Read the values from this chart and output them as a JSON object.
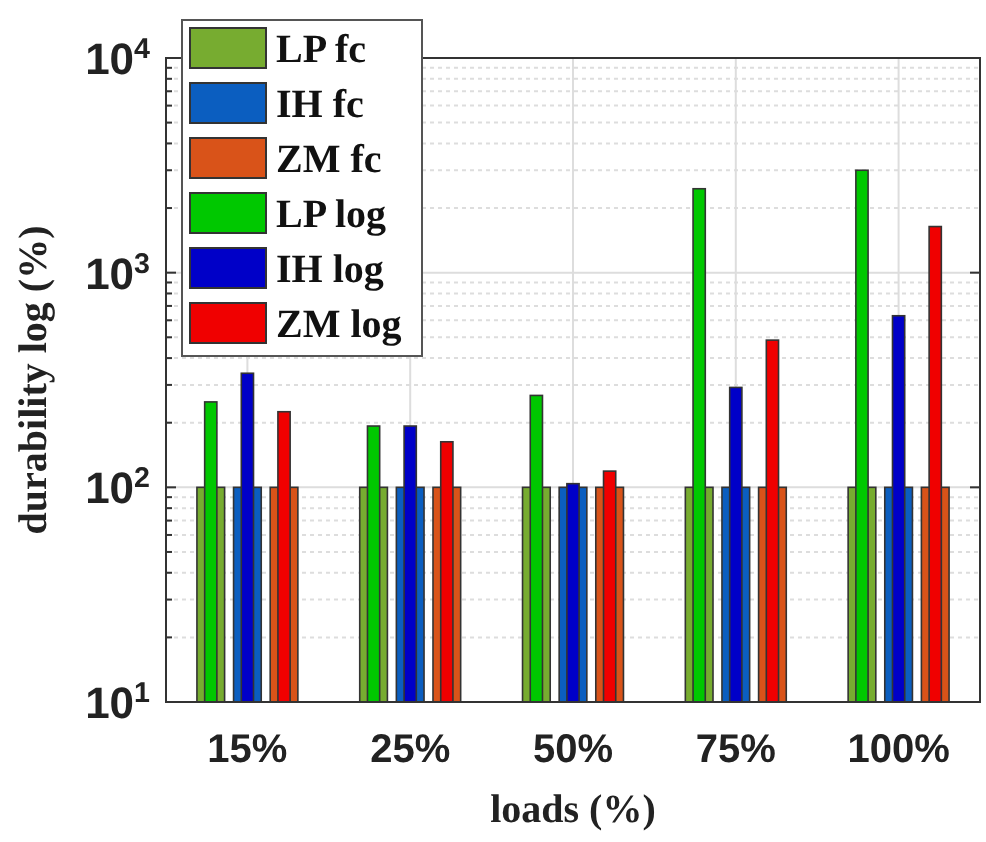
{
  "chart_data": {
    "type": "bar",
    "xlabel": "loads (%)",
    "ylabel": "durability log (%)",
    "categories": [
      "15%",
      "25%",
      "50%",
      "75%",
      "100%"
    ],
    "series": [
      {
        "name": "LP fc",
        "color": "#77ac30",
        "values": [
          100,
          100,
          100,
          100,
          100
        ]
      },
      {
        "name": "IH fc",
        "color": "#0b5ec0",
        "values": [
          100,
          100,
          100,
          100,
          100
        ]
      },
      {
        "name": "ZM fc",
        "color": "#d95319",
        "values": [
          100,
          100,
          100,
          100,
          100
        ]
      },
      {
        "name": "LP log",
        "color": "#00c800",
        "values": [
          250,
          193,
          268,
          2460,
          3000
        ]
      },
      {
        "name": "IH log",
        "color": "#0000c8",
        "values": [
          340,
          193,
          104,
          292,
          630
        ]
      },
      {
        "name": "ZM log",
        "color": "#f00000",
        "values": [
          225,
          163,
          119,
          485,
          1640
        ]
      }
    ],
    "log": true,
    "ylim": [
      10,
      10000
    ],
    "yticks": [
      {
        "value": 10,
        "label": "10$^{1}$"
      },
      {
        "value": 100,
        "label": "10$^{2}$"
      },
      {
        "value": 1000,
        "label": "10$^{3}$"
      },
      {
        "value": 10000,
        "label": "10$^{4}$"
      }
    ],
    "grid": true,
    "legend": "top left"
  }
}
